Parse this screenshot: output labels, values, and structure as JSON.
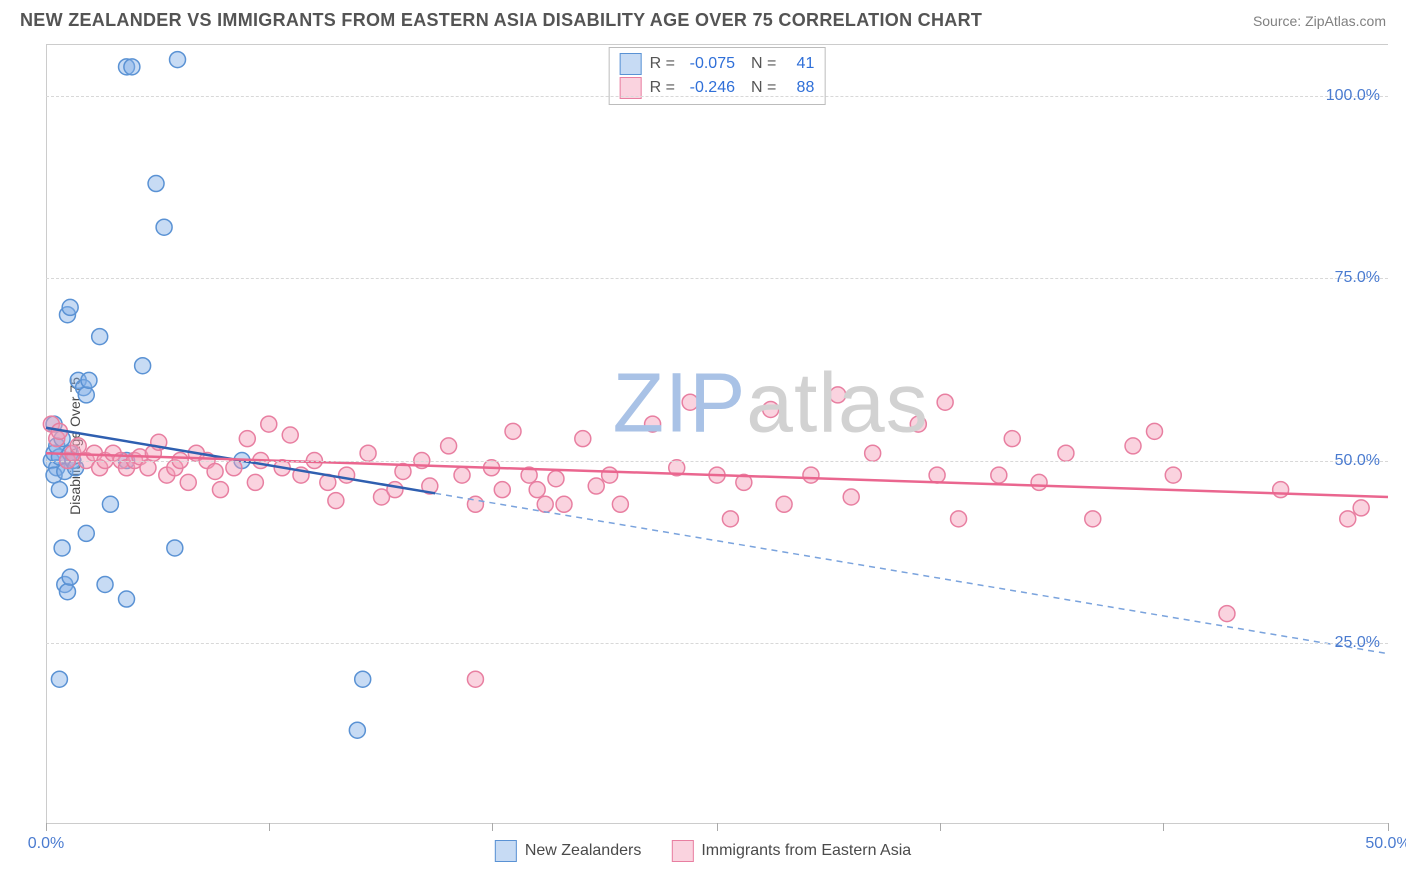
{
  "title": "NEW ZEALANDER VS IMMIGRANTS FROM EASTERN ASIA DISABILITY AGE OVER 75 CORRELATION CHART",
  "source": "Source: ZipAtlas.com",
  "y_axis_label": "Disability Age Over 75",
  "watermark": {
    "prefix": "ZIP",
    "suffix": "atlas",
    "color_prefix": "#a9c2e6",
    "color_suffix": "#d2d2d2"
  },
  "chart": {
    "type": "scatter",
    "xlim": [
      0,
      50
    ],
    "ylim": [
      0,
      107
    ],
    "y_ticks": [
      25,
      50,
      75,
      100
    ],
    "y_tick_labels": [
      "25.0%",
      "50.0%",
      "75.0%",
      "100.0%"
    ],
    "x_ticks": [
      0,
      8.3,
      16.6,
      25,
      33.3,
      41.6,
      50
    ],
    "x_tick_labels": {
      "0": "0.0%",
      "50": "50.0%"
    },
    "grid_color": "#d8d8d8",
    "background_color": "#ffffff",
    "axis_color": "#cccccc",
    "tick_label_color": "#4a7bd0",
    "series": [
      {
        "name": "New Zealanders",
        "marker_fill": "rgba(130,175,230,0.45)",
        "marker_stroke": "#5a92d4",
        "marker_radius": 8,
        "line_color": "#2f5fb0",
        "line_width": 2.5,
        "dash_color": "#7aa3dd",
        "R": "-0.075",
        "N": "41",
        "trend": {
          "x1": 0,
          "y1": 54.5,
          "x2": 14.5,
          "y2": 45.5,
          "ext_x2": 50,
          "ext_y2": 23.5
        },
        "points": [
          [
            0.2,
            50
          ],
          [
            0.3,
            51
          ],
          [
            0.4,
            49
          ],
          [
            0.3,
            48
          ],
          [
            0.5,
            50.5
          ],
          [
            0.4,
            52
          ],
          [
            0.6,
            53
          ],
          [
            0.3,
            55
          ],
          [
            0.8,
            50
          ],
          [
            0.7,
            48.5
          ],
          [
            0.5,
            46
          ],
          [
            0.9,
            51
          ],
          [
            1.0,
            50
          ],
          [
            1.1,
            49
          ],
          [
            0.8,
            70
          ],
          [
            0.9,
            71
          ],
          [
            1.2,
            61
          ],
          [
            1.4,
            60
          ],
          [
            1.5,
            59
          ],
          [
            1.6,
            61
          ],
          [
            2.0,
            67
          ],
          [
            0.6,
            38
          ],
          [
            0.7,
            33
          ],
          [
            0.8,
            32
          ],
          [
            0.9,
            34
          ],
          [
            2.2,
            33
          ],
          [
            2.4,
            44
          ],
          [
            0.5,
            20
          ],
          [
            1.5,
            40
          ],
          [
            3.0,
            104
          ],
          [
            3.2,
            104
          ],
          [
            4.9,
            105
          ],
          [
            4.1,
            88
          ],
          [
            4.4,
            82
          ],
          [
            3.0,
            50
          ],
          [
            3.6,
            63
          ],
          [
            4.8,
            38
          ],
          [
            7.3,
            50
          ],
          [
            11.8,
            20
          ],
          [
            11.6,
            13
          ],
          [
            3.0,
            31
          ]
        ]
      },
      {
        "name": "Immigrants from Eastern Asia",
        "marker_fill": "rgba(244,158,184,0.45)",
        "marker_stroke": "#e87fa1",
        "marker_radius": 8,
        "line_color": "#ea668f",
        "line_width": 2.5,
        "R": "-0.246",
        "N": "88",
        "trend": {
          "x1": 0,
          "y1": 51,
          "x2": 50,
          "y2": 45
        },
        "points": [
          [
            0.2,
            55
          ],
          [
            0.4,
            53
          ],
          [
            0.5,
            54
          ],
          [
            0.8,
            50
          ],
          [
            1.0,
            51
          ],
          [
            1.2,
            52
          ],
          [
            1.5,
            50
          ],
          [
            1.8,
            51
          ],
          [
            2.0,
            49
          ],
          [
            2.2,
            50
          ],
          [
            2.5,
            51
          ],
          [
            2.8,
            50
          ],
          [
            3.0,
            49
          ],
          [
            3.3,
            50
          ],
          [
            3.5,
            50.5
          ],
          [
            3.8,
            49
          ],
          [
            4.0,
            51
          ],
          [
            4.2,
            52.5
          ],
          [
            4.5,
            48
          ],
          [
            4.8,
            49
          ],
          [
            5.0,
            50
          ],
          [
            5.3,
            47
          ],
          [
            5.6,
            51
          ],
          [
            6.0,
            50
          ],
          [
            6.3,
            48.5
          ],
          [
            6.5,
            46
          ],
          [
            7.0,
            49
          ],
          [
            7.5,
            53
          ],
          [
            7.8,
            47
          ],
          [
            8.0,
            50
          ],
          [
            8.3,
            55
          ],
          [
            8.8,
            49
          ],
          [
            9.1,
            53.5
          ],
          [
            9.5,
            48
          ],
          [
            10.0,
            50
          ],
          [
            10.5,
            47
          ],
          [
            10.8,
            44.5
          ],
          [
            11.2,
            48
          ],
          [
            12.0,
            51
          ],
          [
            12.5,
            45
          ],
          [
            13.0,
            46
          ],
          [
            13.3,
            48.5
          ],
          [
            14.0,
            50
          ],
          [
            14.3,
            46.5
          ],
          [
            15.0,
            52
          ],
          [
            15.5,
            48
          ],
          [
            16.0,
            44
          ],
          [
            16.6,
            49
          ],
          [
            17.0,
            46
          ],
          [
            17.4,
            54
          ],
          [
            18.0,
            48
          ],
          [
            18.3,
            46
          ],
          [
            18.6,
            44
          ],
          [
            19.0,
            47.5
          ],
          [
            19.3,
            44
          ],
          [
            20.0,
            53
          ],
          [
            20.5,
            46.5
          ],
          [
            21.0,
            48
          ],
          [
            21.4,
            44
          ],
          [
            22.6,
            55
          ],
          [
            23.5,
            49
          ],
          [
            24.0,
            58
          ],
          [
            25.0,
            48
          ],
          [
            25.5,
            42
          ],
          [
            26.0,
            47
          ],
          [
            27.0,
            57
          ],
          [
            27.5,
            44
          ],
          [
            28.5,
            48
          ],
          [
            29.5,
            59
          ],
          [
            30.0,
            45
          ],
          [
            30.8,
            51
          ],
          [
            32.5,
            55
          ],
          [
            33.2,
            48
          ],
          [
            33.5,
            58
          ],
          [
            34.0,
            42
          ],
          [
            35.5,
            48
          ],
          [
            36.0,
            53
          ],
          [
            37.0,
            47
          ],
          [
            38.0,
            51
          ],
          [
            39.0,
            42
          ],
          [
            40.5,
            52
          ],
          [
            41.3,
            54
          ],
          [
            42.0,
            48
          ],
          [
            44.0,
            29
          ],
          [
            46.0,
            46
          ],
          [
            48.5,
            42
          ],
          [
            49.0,
            43.5
          ],
          [
            16.0,
            20
          ]
        ]
      }
    ]
  },
  "legend_bottom": [
    {
      "label": "New Zealanders",
      "fill": "rgba(130,175,230,0.45)",
      "stroke": "#5a92d4"
    },
    {
      "label": "Immigrants from Eastern Asia",
      "fill": "rgba(244,158,184,0.45)",
      "stroke": "#e87fa1"
    }
  ]
}
